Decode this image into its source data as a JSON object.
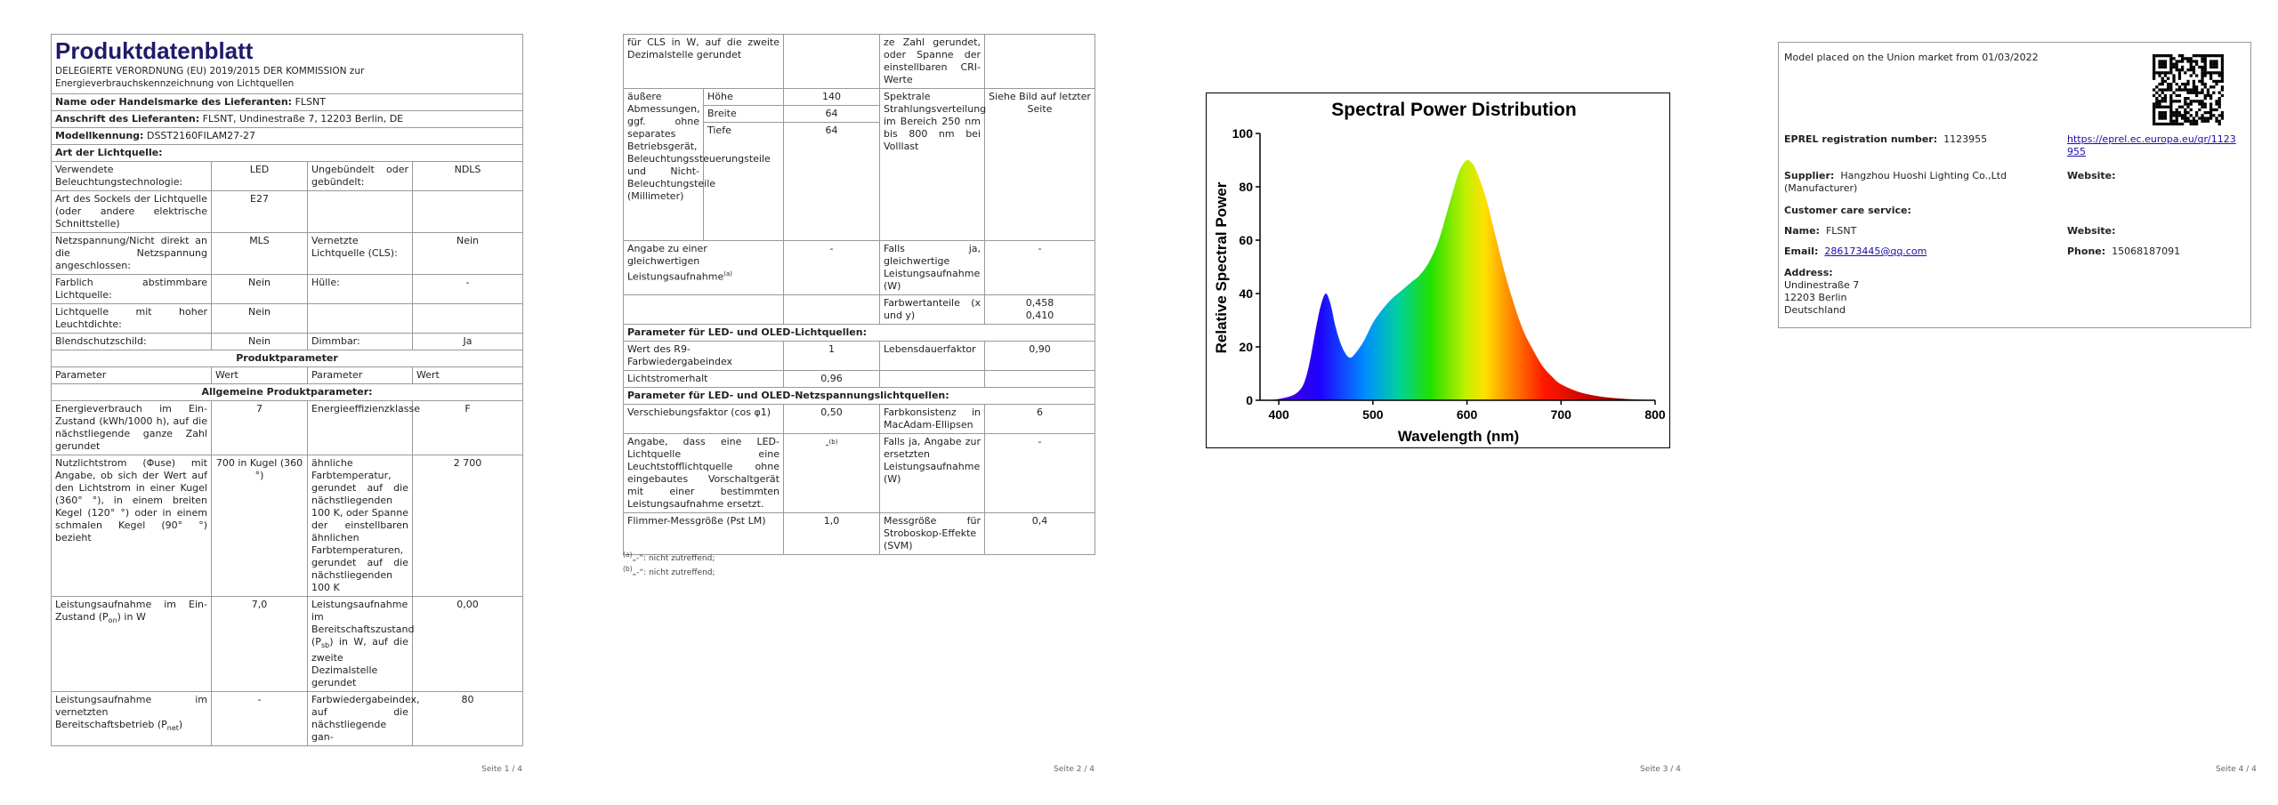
{
  "page1": {
    "title": "Produktdatenblatt",
    "regulation": "DELEGIERTE VERORDNUNG (EU) 2019/2015 DER KOMMISSION zur Energieverbrauchskennzeichnung von Lichtquellen",
    "supplier_label": "Name oder Handelsmarke des Lieferanten:",
    "supplier_value": "FLSNT",
    "address_label": "Anschrift des Lieferanten:",
    "address_value": "FLSNT, Undinestraße 7, 12203 Berlin, DE",
    "model_label": "Modellkennung:",
    "model_value": "DSST2160FILAM27-27",
    "type_heading": "Art der Lichtquelle:",
    "rows_a": [
      {
        "l1": "Verwendete Beleuchtungstechnologie:",
        "v1": "LED",
        "l2": "Ungebündelt oder gebündelt:",
        "v2": "NDLS"
      },
      {
        "l1": "Art des Sockels der Lichtquelle (oder andere elektrische Schnittstelle)",
        "v1": "E27",
        "l2": "",
        "v2": ""
      },
      {
        "l1": "Netzspannung/Nicht direkt an die Netzspannung angeschlossen:",
        "v1": "MLS",
        "l2": "Vernetzte Lichtquelle (CLS):",
        "v2": "Nein"
      },
      {
        "l1": "Farblich abstimmbare Lichtquelle:",
        "v1": "Nein",
        "l2": "Hülle:",
        "v2": "-"
      },
      {
        "l1": "Lichtquelle mit hoher Leuchtdichte:",
        "v1": "Nein",
        "l2": "",
        "v2": ""
      },
      {
        "l1": "Blendschutzschild:",
        "v1": "Nein",
        "l2": "Dimmbar:",
        "v2": "Ja"
      }
    ],
    "product_params_heading": "Produktparameter",
    "col_param": "Parameter",
    "col_value": "Wert",
    "general_heading": "Allgemeine Produktparameter:",
    "rows_b": [
      {
        "l1": "Energieverbrauch im Ein-Zustand (kWh/1000 h), auf die nächstliegende ganze Zahl gerundet",
        "v1": "7",
        "l2": "Energieeffizienzklasse",
        "v2": "F"
      },
      {
        "l1": "Nutzlichtstrom (Φuse) mit Angabe, ob sich der Wert auf den Lichtstrom in einer Kugel (360° °), in einem breiten Kegel (120° °) oder in einem schmalen Kegel (90° °) bezieht",
        "v1": "700 in Kugel (360 °)",
        "l2": "ähnliche Farbtemperatur, gerundet auf die nächstliegenden 100 K, oder Spanne der einstellbaren ähnlichen Farbtemperaturen, gerundet auf die nächstliegenden 100 K",
        "v2": "2 700"
      },
      {
        "l1": "Leistungsaufnahme im Ein-Zustand (P",
        "l1sub": "on",
        "l1end": ") in W",
        "v1": "7,0",
        "l2": "Leistungsaufnahme im Bereitschaftszustand (P",
        "l2sub": "sb",
        "l2end": ") in W, auf die zweite Dezimalstelle gerundet",
        "v2": "0,00"
      },
      {
        "l1": "Leistungsaufnahme im vernetzten Bereitschaftsbetrieb (P",
        "l1sub": "net",
        "l1end": ")",
        "v1": "-",
        "l2": "Farbwiedergabeindex, auf die nächstliegende gan-",
        "v2": "80"
      }
    ],
    "footer": "Seite 1 / 4"
  },
  "page2": {
    "r1_l1": "für CLS in W, auf die zweite Dezimalstelle gerundet",
    "r1_l2": "ze Zahl gerundet, oder Spanne der einstellbaren CRI-Werte",
    "dims_label": "äußere Abmessungen, ggf. ohne separates Betriebsgerät, Beleuchtungssteuerungsteile und Nicht-Beleuchtungsteile (Millimeter)",
    "height_label": "Höhe",
    "height_value": "140",
    "width_label": "Breite",
    "width_value": "64",
    "depth_label": "Tiefe",
    "depth_value": "64",
    "spd_label": "Spektrale Strahlungsverteilung im Bereich 250 nm bis 800 nm bei Volllast",
    "spd_value": "Siehe Bild auf letzter Seite",
    "equiv_label": "Angabe zu einer gleichwertigen Leistungsaufnahme",
    "equiv_sup": "(a)",
    "equiv_value": "-",
    "equiv2_label": "Falls ja, gleichwertige Leistungsaufnahme (W)",
    "equiv2_value": "-",
    "chroma_label": "Farbwertanteile (x und y)",
    "chroma_x": "0,458",
    "chroma_y": "0,410",
    "led_heading": "Parameter für LED- und OLED-Lichtquellen:",
    "r9_label": "Wert des R9-Farbwiedergabeindex",
    "r9_value": "1",
    "life_label": "Lebensdauerfaktor",
    "life_value": "0,90",
    "maint_label": "Lichtstromerhalt",
    "maint_value": "0,96",
    "mains_heading": "Parameter für LED- und OLED-Netzspannungslichtquellen:",
    "shift_label": "Verschiebungsfaktor (cos φ1)",
    "shift_value": "0,50",
    "consist_label": "Farbkonsistenz in MacAdam-Ellipsen",
    "consist_value": "6",
    "claim_label": "Angabe, dass eine LED-Lichtquelle eine Leuchtstofflichtquelle ohne eingebautes Vorschaltgerät mit einer bestimmten Leistungsaufnahme ersetzt.",
    "claim_value": "-",
    "claim_sup": "(b)",
    "claim2_label": "Falls ja, Angabe zur ersetzten Leistungsaufnahme (W)",
    "claim2_value": "-",
    "flicker_label": "Flimmer-Messgröße (Pst LM)",
    "flicker_value": "1,0",
    "strobo_label": "Messgröße für Stroboskop-Effekte (SVM)",
    "strobo_value": "0,4",
    "note_a_sup": "(a)",
    "note_a": "„-“: nicht zutreffend;",
    "note_b_sup": "(b)",
    "note_b": "„-“: nicht zutreffend;",
    "footer": "Seite 2 / 4"
  },
  "page3": {
    "footer": "Seite 3 / 4"
  },
  "chart_data": {
    "type": "area",
    "title": "Spectral Power Distribution",
    "xlabel": "Wavelength (nm)",
    "ylabel": "Relative Spectral Power",
    "xlim": [
      380,
      800
    ],
    "ylim": [
      0,
      100
    ],
    "xticks": [
      400,
      500,
      600,
      700,
      800
    ],
    "yticks": [
      0,
      20,
      40,
      60,
      80,
      100
    ],
    "x": [
      380,
      400,
      420,
      430,
      440,
      445,
      450,
      455,
      460,
      465,
      470,
      475,
      480,
      490,
      500,
      510,
      520,
      530,
      540,
      550,
      560,
      570,
      580,
      590,
      595,
      600,
      605,
      610,
      620,
      630,
      640,
      650,
      660,
      670,
      680,
      690,
      700,
      720,
      740,
      760,
      780,
      800
    ],
    "y": [
      0,
      0.5,
      3,
      10,
      28,
      36,
      40,
      36,
      28,
      22,
      18,
      16,
      17,
      22,
      29,
      34,
      38,
      41,
      44,
      47,
      52,
      60,
      72,
      84,
      88,
      90,
      89,
      86,
      76,
      62,
      48,
      36,
      26,
      19,
      13,
      9,
      6,
      3,
      1.5,
      0.7,
      0.3,
      0.1
    ],
    "fill": "visible spectrum gradient",
    "grid": false,
    "legend": "none"
  },
  "page4": {
    "market": "Model placed on the Union market from 01/03/2022",
    "eprel_label": "EPREL registration number:",
    "eprel_value": "1123955",
    "eprel_link": "https://eprel.ec.europa.eu/qr/1123955",
    "supplier_label": "Supplier:",
    "supplier_value": "Hangzhou Huoshi Lighting Co.,Ltd (Manufacturer)",
    "website_label": "Website:",
    "care_heading": "Customer care service:",
    "name_label": "Name:",
    "name_value": "FLSNT",
    "website2_label": "Website:",
    "email_label": "Email:",
    "email_value": "286173445@qq.com",
    "phone_label": "Phone:",
    "phone_value": "15068187091",
    "address_label": "Address:",
    "address_lines": [
      "Undinestraße 7",
      "12203 Berlin",
      "Deutschland"
    ],
    "qr_icon": "qr-code-icon",
    "footer": "Seite 4 / 4"
  }
}
